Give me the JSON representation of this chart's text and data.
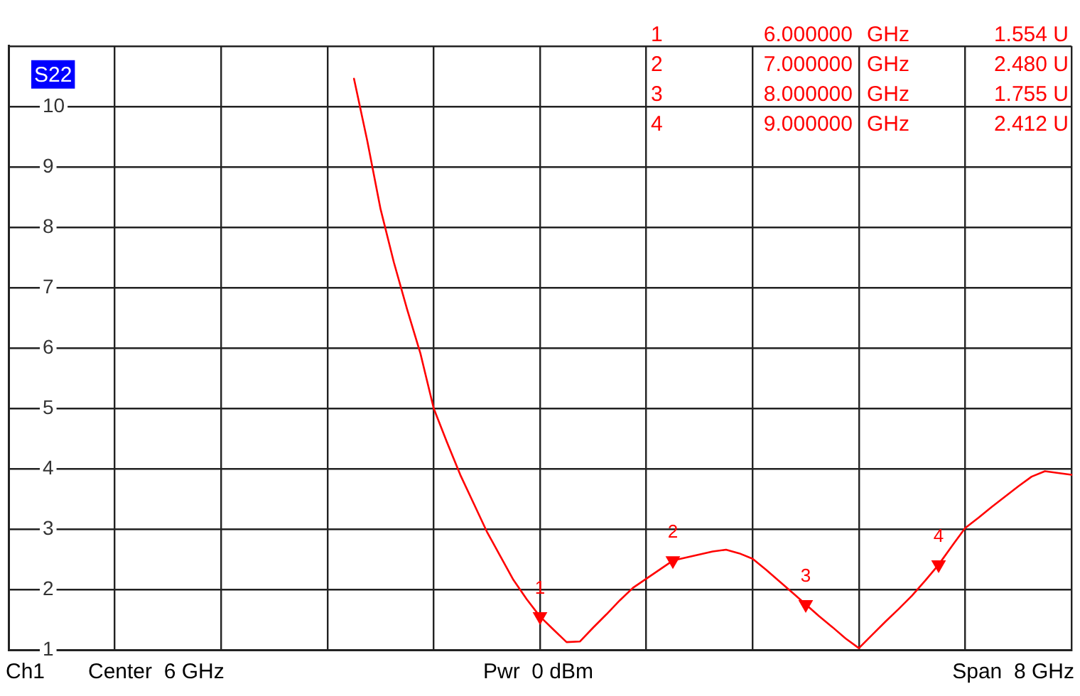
{
  "chart_data": {
    "type": "line",
    "title": "S22",
    "categories": [
      null,
      null,
      null,
      null,
      null,
      null,
      null,
      null,
      null,
      null,
      null,
      null,
      null,
      null,
      null,
      null,
      null,
      null,
      null,
      null,
      null,
      null,
      null,
      null,
      null,
      null,
      null,
      null,
      null,
      null,
      null,
      null,
      null,
      null,
      null,
      null,
      null,
      null,
      null,
      null,
      null,
      null,
      null,
      null,
      null,
      null,
      null,
      null,
      null,
      null,
      null,
      null,
      null,
      null,
      null,
      null,
      null,
      null,
      null,
      null,
      null,
      null,
      null,
      null,
      null,
      null,
      null,
      null,
      null,
      null,
      null,
      null,
      null,
      null,
      null,
      null,
      null,
      null,
      null,
      null,
      null
    ],
    "ylim": [
      1,
      11
    ],
    "yticks": [
      1,
      2,
      3,
      4,
      5,
      6,
      7,
      8,
      9,
      10,
      {
        "value": 11,
        "label": null
      }
    ],
    "tick_labels": "y",
    "grid": true,
    "legend": false,
    "marker": "none",
    "line_style": "solid",
    "series": [
      {
        "color": "#ff0000",
        "values": [
          null,
          null,
          null,
          null,
          null,
          null,
          null,
          null,
          null,
          null,
          null,
          null,
          null,
          null,
          null,
          null,
          null,
          null,
          null,
          null,
          null,
          null,
          null,
          null,
          null,
          null,
          10.46,
          9.43,
          8.3,
          7.42,
          6.64,
          5.91,
          5.0,
          4.44,
          3.9,
          3.43,
          2.96,
          2.56,
          2.16,
          1.84,
          1.554,
          1.34,
          1.13,
          1.14,
          1.37,
          1.59,
          1.82,
          2.03,
          2.18,
          2.33,
          2.48,
          2.53,
          2.58,
          2.63,
          2.66,
          2.6,
          2.51,
          2.33,
          2.14,
          1.95,
          1.755,
          1.56,
          1.38,
          1.19,
          1.03,
          1.25,
          1.47,
          1.68,
          1.9,
          2.15,
          2.412,
          2.72,
          3.02,
          3.19,
          3.37,
          3.54,
          3.71,
          3.87,
          3.96,
          3.93,
          3.9
        ],
        "name": null
      },
      {
        "type": "scatter",
        "color": "#ff0000",
        "marker": "triangle",
        "values": [
          null,
          null,
          null,
          null,
          null,
          null,
          null,
          null,
          null,
          null,
          null,
          null,
          null,
          null,
          null,
          null,
          null,
          null,
          null,
          null,
          null,
          null,
          null,
          null,
          null,
          null,
          null,
          null,
          null,
          null,
          null,
          null,
          null,
          null,
          null,
          null,
          null,
          null,
          null,
          null,
          1.554,
          null,
          null,
          null,
          null,
          null,
          null,
          null,
          null,
          null,
          2.48,
          null,
          null,
          null,
          null,
          null,
          null,
          null,
          null,
          null,
          1.755,
          null,
          null,
          null,
          null,
          null,
          null,
          null,
          null,
          null,
          2.412,
          null,
          null,
          null,
          null,
          null,
          null,
          null,
          null,
          null,
          null
        ]
      }
    ],
    "annotations": [
      "Ch1",
      "Center  6 GHz",
      "Pwr  0 dBm",
      "Span  8 GHz",
      "1  6.000000  GHz  1.554 U",
      "2  7.000000  GHz  2.480 U",
      "3  8.000000  GHz  1.755 U",
      "4  9.000000  GHz  2.412 U",
      "1",
      "2",
      "3",
      "4"
    ]
  }
}
